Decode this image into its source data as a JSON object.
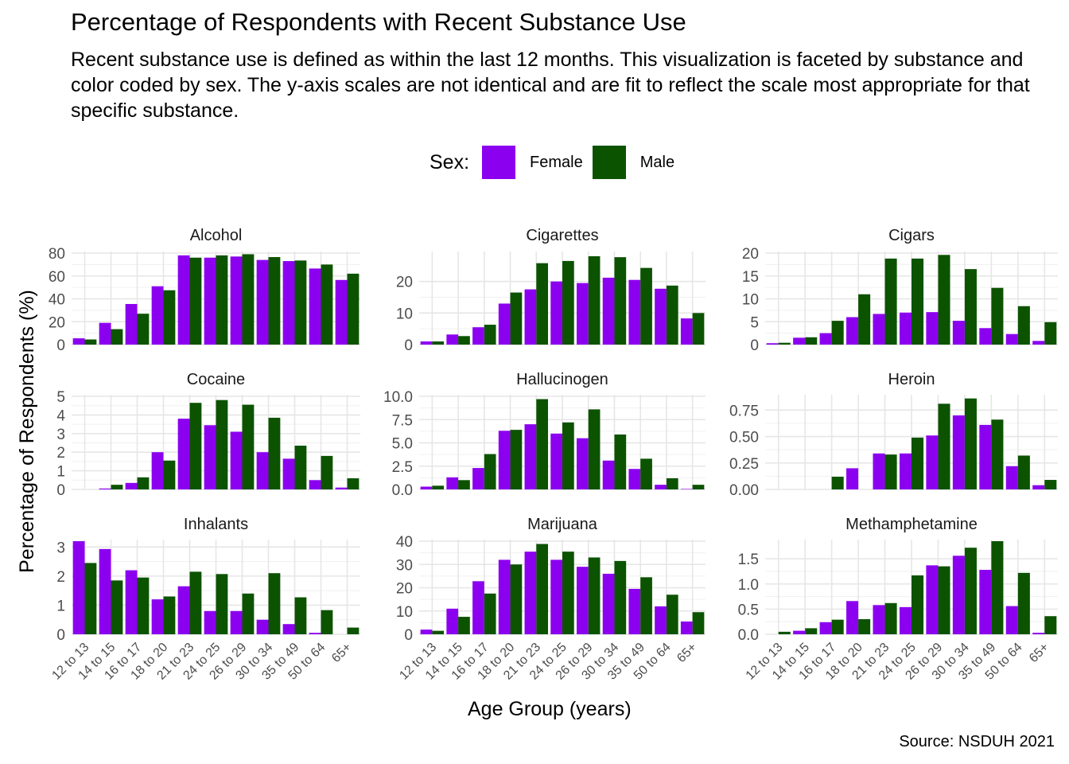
{
  "title": "Percentage of Respondents with Recent Substance Use",
  "subtitle": "Recent substance use is defined as within the last 12 months. This visualization is faceted by substance and color coded by sex. The y-axis scales are not identical and are fit to reflect the scale most appropriate for that specific substance.",
  "legend": {
    "title": "Sex:",
    "items": [
      {
        "label": "Female",
        "color": "#8c00f0"
      },
      {
        "label": "Male",
        "color": "#0c5300"
      }
    ]
  },
  "x_title": "Age Group (years)",
  "y_title": "Percentage of Respondents (%)",
  "caption": "Source: NSDUH 2021",
  "chart_data": {
    "type": "bar",
    "grid": true,
    "legend_position": "top",
    "categories": [
      "12 to 13",
      "14 to 15",
      "16 to 17",
      "18 to 20",
      "21 to 23",
      "24 to 25",
      "26 to 29",
      "30 to 34",
      "35 to 49",
      "50 to 64",
      "65+"
    ],
    "facets": [
      {
        "name": "Alcohol",
        "ylim": [
          0,
          80
        ],
        "yticks": [
          "0",
          "20",
          "40",
          "60",
          "80"
        ],
        "tick_values": [
          0,
          20,
          40,
          60,
          80
        ],
        "series": [
          {
            "name": "Female",
            "values": [
              5.5,
              19,
              35.5,
              51,
              78,
              76,
              77,
              74,
              73,
              66.5,
              56.5
            ]
          },
          {
            "name": "Male",
            "values": [
              4.5,
              13.5,
              27,
              47.5,
              76,
              78,
              79,
              76.5,
              73.5,
              70,
              62
            ]
          }
        ]
      },
      {
        "name": "Cigarettes",
        "ylim": [
          0,
          29
        ],
        "yticks": [
          "0",
          "10",
          "20"
        ],
        "tick_values": [
          0,
          10,
          20
        ],
        "series": [
          {
            "name": "Female",
            "values": [
              1,
              3.2,
              5.5,
              13,
              17.5,
              20,
              19.5,
              21.2,
              20.5,
              17.7,
              8.3
            ]
          },
          {
            "name": "Male",
            "values": [
              1,
              2.7,
              6.3,
              16.5,
              25.8,
              26.5,
              28,
              27.7,
              24.3,
              18.7,
              10
            ]
          }
        ]
      },
      {
        "name": "Cigars",
        "ylim": [
          0,
          20
        ],
        "yticks": [
          "0",
          "5",
          "10",
          "15",
          "20"
        ],
        "tick_values": [
          0,
          5,
          10,
          15,
          20
        ],
        "series": [
          {
            "name": "Female",
            "values": [
              0.3,
              1.5,
              2.5,
              6,
              6.7,
              7,
              7.1,
              5.2,
              3.6,
              2.3,
              0.8
            ]
          },
          {
            "name": "Male",
            "values": [
              0.4,
              1.6,
              5.2,
              11,
              18.8,
              18.8,
              19.6,
              16.5,
              12.4,
              8.4,
              4.9
            ]
          }
        ]
      },
      {
        "name": "Cocaine",
        "ylim": [
          0,
          5
        ],
        "yticks": [
          "0",
          "1",
          "2",
          "3",
          "4",
          "5"
        ],
        "tick_values": [
          0,
          1,
          2,
          3,
          4,
          5
        ],
        "series": [
          {
            "name": "Female",
            "values": [
              0,
              0.05,
              0.35,
              2,
              3.8,
              3.45,
              3.1,
              2,
              1.65,
              0.5,
              0.1
            ]
          },
          {
            "name": "Male",
            "values": [
              0,
              0.25,
              0.65,
              1.55,
              4.65,
              4.8,
              4.55,
              3.85,
              2.35,
              1.8,
              0.6
            ]
          }
        ]
      },
      {
        "name": "Hallucinogen",
        "ylim": [
          0,
          10
        ],
        "yticks": [
          "0.0",
          "2.5",
          "5.0",
          "7.5",
          "10.0"
        ],
        "tick_values": [
          0,
          2.5,
          5,
          7.5,
          10
        ],
        "series": [
          {
            "name": "Female",
            "values": [
              0.3,
              1.3,
              2.3,
              6.3,
              7,
              6,
              5.5,
              3.1,
              2.2,
              0.5,
              0.05
            ]
          },
          {
            "name": "Male",
            "values": [
              0.4,
              1,
              3.8,
              6.4,
              9.7,
              7.2,
              8.6,
              5.9,
              3.3,
              1.2,
              0.5
            ]
          }
        ]
      },
      {
        "name": "Heroin",
        "ylim": [
          0,
          0.88
        ],
        "yticks": [
          "0.00",
          "0.25",
          "0.50",
          "0.75"
        ],
        "tick_values": [
          0,
          0.25,
          0.5,
          0.75
        ],
        "series": [
          {
            "name": "Female",
            "values": [
              0,
              0,
              0,
              0.2,
              0.34,
              0.34,
              0.51,
              0.7,
              0.61,
              0.22,
              0.04
            ]
          },
          {
            "name": "Male",
            "values": [
              0,
              0,
              0.12,
              0,
              0.33,
              0.49,
              0.81,
              0.86,
              0.66,
              0.32,
              0.09
            ]
          }
        ]
      },
      {
        "name": "Inhalants",
        "ylim": [
          0,
          3.2
        ],
        "yticks": [
          "0",
          "1",
          "2",
          "3"
        ],
        "tick_values": [
          0,
          1,
          2,
          3
        ],
        "series": [
          {
            "name": "Female",
            "values": [
              3.2,
              2.93,
              2.2,
              1.2,
              1.65,
              0.8,
              0.8,
              0.5,
              0.35,
              0.05,
              0
            ]
          },
          {
            "name": "Male",
            "values": [
              2.45,
              1.85,
              1.95,
              1.3,
              2.15,
              2.07,
              1.4,
              2.1,
              1.27,
              0.83,
              0.23
            ]
          }
        ]
      },
      {
        "name": "Marijuana",
        "ylim": [
          0,
          40
        ],
        "yticks": [
          "0",
          "10",
          "20",
          "30",
          "40"
        ],
        "tick_values": [
          0,
          10,
          20,
          30,
          40
        ],
        "series": [
          {
            "name": "Female",
            "values": [
              2,
              11,
              22.8,
              32,
              35.5,
              32,
              29,
              26,
              19.5,
              12,
              5.5
            ]
          },
          {
            "name": "Male",
            "values": [
              1.5,
              7.5,
              17.5,
              30,
              38.8,
              35.5,
              33,
              31.5,
              24.5,
              17,
              9.5
            ]
          }
        ]
      },
      {
        "name": "Methamphetamine",
        "ylim": [
          0,
          1.85
        ],
        "yticks": [
          "0.0",
          "0.5",
          "1.0",
          "1.5"
        ],
        "tick_values": [
          0,
          0.5,
          1,
          1.5
        ],
        "series": [
          {
            "name": "Female",
            "values": [
              0,
              0.07,
              0.24,
              0.66,
              0.58,
              0.54,
              1.37,
              1.56,
              1.28,
              0.56,
              0.03
            ]
          },
          {
            "name": "Male",
            "values": [
              0.05,
              0.12,
              0.29,
              0.3,
              0.62,
              1.17,
              1.35,
              1.72,
              1.85,
              1.22,
              0.36
            ]
          }
        ]
      }
    ]
  }
}
